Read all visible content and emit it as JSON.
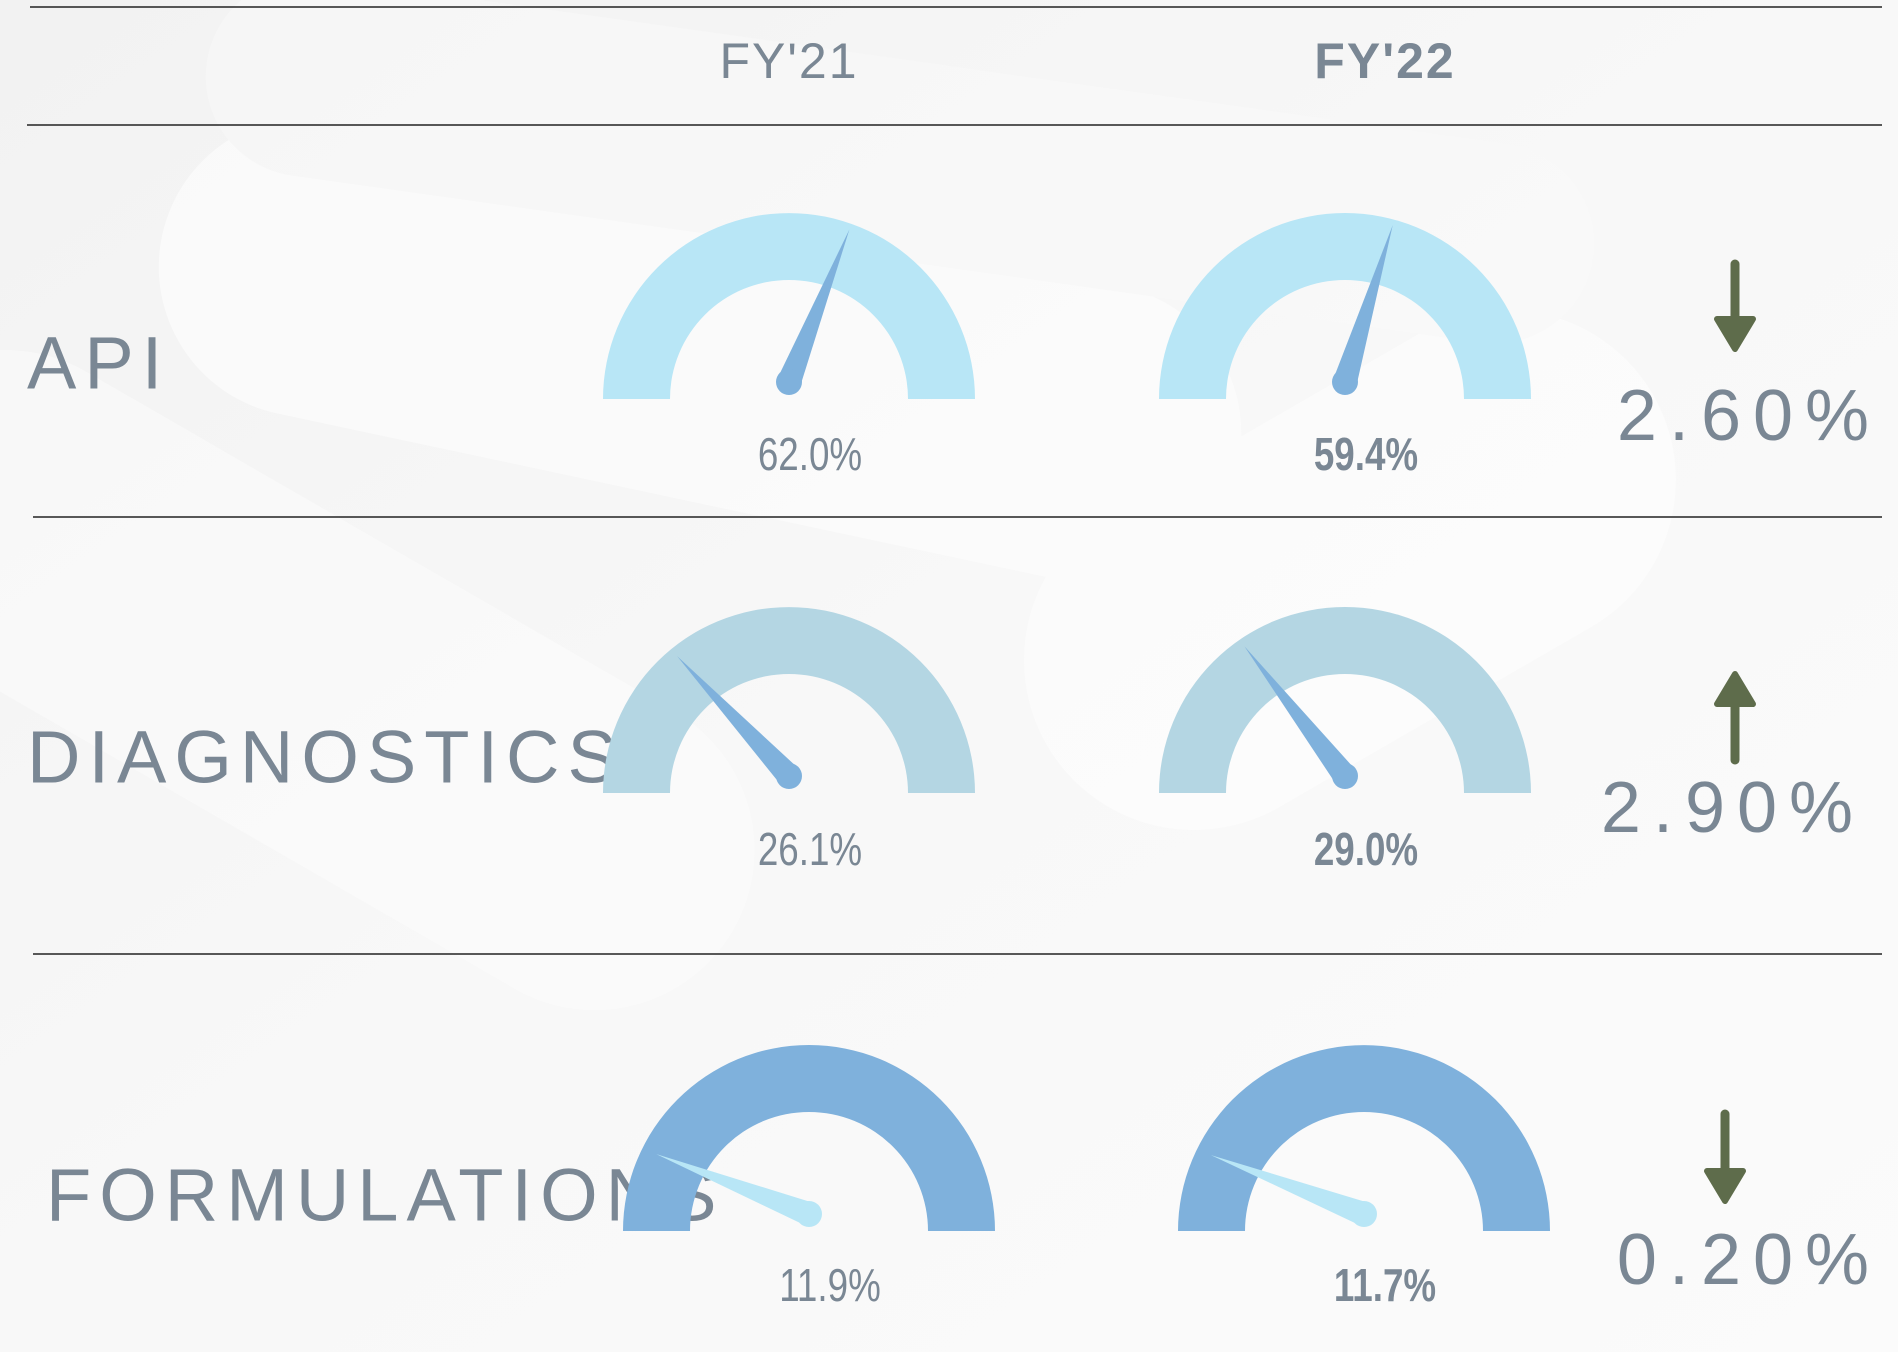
{
  "header": {
    "columns": [
      "FY'21",
      "FY'22"
    ]
  },
  "rows": [
    {
      "label": "API",
      "fy21": {
        "value": 62.0,
        "label": "62.0%"
      },
      "fy22": {
        "value": 59.4,
        "label": "59.4%"
      },
      "change": {
        "value": 2.6,
        "label": "2.60%"
      },
      "direction": "down",
      "arc_color": "#b8e6f6",
      "needle_color": "#7fb1dc"
    },
    {
      "label": "DIAGNOSTICS",
      "fy21": {
        "value": 26.1,
        "label": "26.1%"
      },
      "fy22": {
        "value": 29.0,
        "label": "29.0%"
      },
      "change": {
        "value": 2.9,
        "label": "2.90%"
      },
      "direction": "up",
      "arc_color": "#b4d6e3",
      "needle_color": "#7fb1dc"
    },
    {
      "label": "FORMULATIONS",
      "fy21": {
        "value": 11.9,
        "label": "11.9%"
      },
      "fy22": {
        "value": 11.7,
        "label": "11.7%"
      },
      "change": {
        "value": 0.2,
        "label": "0.20%"
      },
      "direction": "down",
      "arc_color": "#7fb1dc",
      "needle_color": "#b8e6f6"
    }
  ]
}
